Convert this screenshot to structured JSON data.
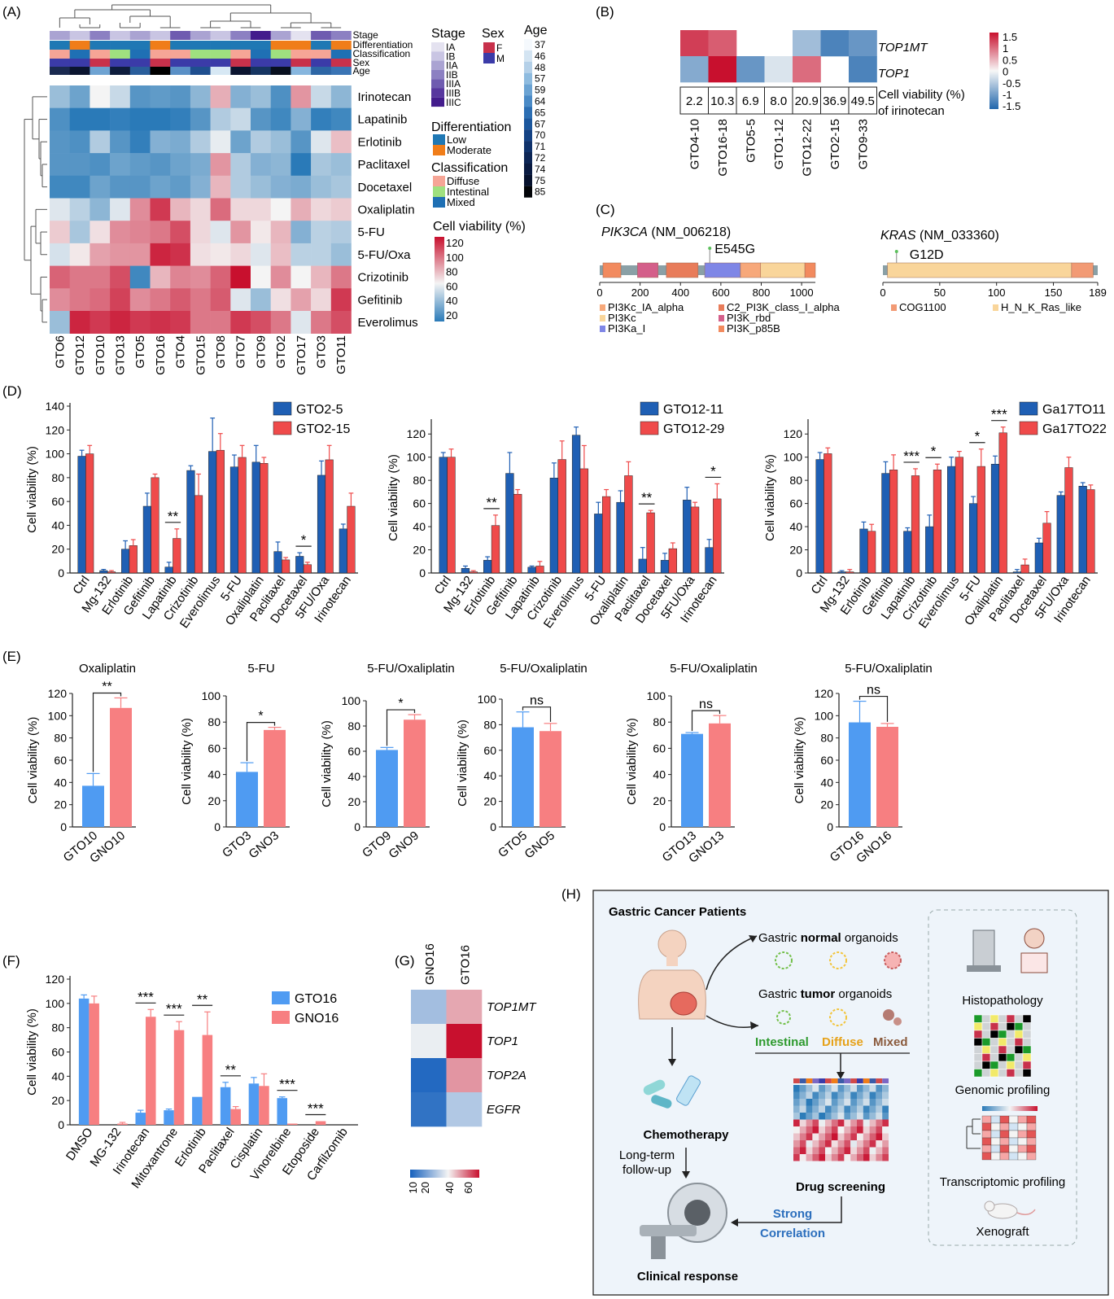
{
  "panels": {
    "A": "(A)",
    "B": "(B)",
    "C": "(C)",
    "D": "(D)",
    "E": "(E)",
    "F": "(F)",
    "G": "(G)",
    "H": "(H)"
  },
  "colors": {
    "blue": "#1f5fb4",
    "red": "#ef4a4a",
    "lightblue": "#4f9bf2",
    "lightred": "#f77f81"
  },
  "chart_data": [
    {
      "id": "A",
      "type": "heatmap",
      "columns": [
        "GTO6",
        "GTO12",
        "GTO10",
        "GTO13",
        "GTO5",
        "GTO16",
        "GTO4",
        "GTO15",
        "GTO8",
        "GTO7",
        "GTO9",
        "GTO2",
        "GTO17",
        "GTO3",
        "GTO11"
      ],
      "rows": [
        "Irinotecan",
        "Lapatinib",
        "Erlotinib",
        "Paclitaxel",
        "Docetaxel",
        "Oxaliplatin",
        "5-FU",
        "5-FU/Oxa",
        "Crizotinib",
        "Gefitinib",
        "Everolimus"
      ],
      "values": [
        [
          45,
          35,
          65,
          55,
          30,
          32,
          30,
          42,
          82,
          40,
          45,
          28,
          88,
          55,
          42
        ],
        [
          28,
          20,
          15,
          22,
          20,
          18,
          22,
          30,
          50,
          55,
          30,
          25,
          40,
          22,
          25
        ],
        [
          30,
          28,
          50,
          30,
          22,
          40,
          38,
          50,
          62,
          35,
          50,
          45,
          30,
          60,
          78
        ],
        [
          30,
          30,
          28,
          35,
          32,
          30,
          35,
          38,
          88,
          50,
          40,
          42,
          20,
          48,
          45
        ],
        [
          25,
          25,
          35,
          30,
          30,
          35,
          32,
          40,
          80,
          50,
          45,
          40,
          38,
          45,
          48
        ],
        [
          60,
          52,
          42,
          60,
          90,
          110,
          80,
          72,
          98,
          72,
          72,
          65,
          82,
          72,
          75
        ],
        [
          75,
          48,
          70,
          90,
          92,
          95,
          105,
          72,
          60,
          88,
          68,
          80,
          40,
          52,
          50
        ],
        [
          58,
          68,
          85,
          88,
          88,
          115,
          112,
          70,
          68,
          72,
          60,
          78,
          52,
          52,
          45
        ],
        [
          100,
          95,
          95,
          105,
          25,
          80,
          92,
          90,
          100,
          120,
          65,
          90,
          65,
          80,
          95
        ],
        [
          90,
          95,
          98,
          108,
          90,
          95,
          102,
          95,
          102,
          60,
          45,
          70,
          85,
          72,
          110
        ],
        [
          45,
          115,
          110,
          115,
          110,
          112,
          110,
          95,
          95,
          110,
          105,
          95,
          60,
          95,
          105
        ]
      ],
      "annotation_labels": [
        "Stage",
        "Differentiation",
        "Classification",
        "Sex",
        "Age"
      ],
      "legend": {
        "stage_title": "Stage",
        "stage": [
          {
            "label": "IA",
            "color": "#e4e2f0"
          },
          {
            "label": "IB",
            "color": "#c9c5e3"
          },
          {
            "label": "IIA",
            "color": "#aaa3d2"
          },
          {
            "label": "IIB",
            "color": "#8c80c2"
          },
          {
            "label": "IIIA",
            "color": "#6f5cb0"
          },
          {
            "label": "IIIB",
            "color": "#57379e"
          },
          {
            "label": "IIIC",
            "color": "#431c8c"
          }
        ],
        "sex_title": "Sex",
        "sex": [
          {
            "label": "F",
            "color": "#c8314b"
          },
          {
            "label": "M",
            "color": "#3b3ba8"
          }
        ],
        "differentiation_title": "Differentiation",
        "differentiation": [
          {
            "label": "Low",
            "color": "#1f78b4"
          },
          {
            "label": "Moderate",
            "color": "#f07d19"
          }
        ],
        "classification_title": "Classification",
        "classification": [
          {
            "label": "Diffuse",
            "color": "#f6a596"
          },
          {
            "label": "Intestinal",
            "color": "#9fe07f"
          },
          {
            "label": "Mixed",
            "color": "#1f70b4"
          }
        ],
        "viability_title": "Cell viability (%)",
        "viability_ticks": [
          "120",
          "100",
          "80",
          "60",
          "40",
          "20"
        ],
        "age_title": "Age",
        "age_ticks": [
          "37",
          "46",
          "48",
          "57",
          "59",
          "64",
          "65",
          "67",
          "70",
          "71",
          "72",
          "74",
          "75",
          "85"
        ]
      }
    },
    {
      "id": "B",
      "type": "heatmap",
      "columns": [
        "GTO4-10",
        "GTO16-18",
        "GTO5-5",
        "GTO1-12",
        "GTO12-22",
        "GTO2-15",
        "GTO9-33"
      ],
      "rows": [
        "TOP1MT",
        "TOP1"
      ],
      "values": [
        [
          1.2,
          1.0,
          null,
          null,
          -0.6,
          -1.2,
          -1.0
        ],
        [
          -0.8,
          1.6,
          -1.0,
          -0.2,
          0.9,
          null,
          -1.2
        ]
      ],
      "viability_values": [
        "2.2",
        "10.3",
        "6.9",
        "8.0",
        "20.9",
        "36.9",
        "49.5"
      ],
      "viability_label_1": "Cell viability (%)",
      "viability_label_2": "of irinotecan",
      "legend_ticks": [
        "1.5",
        "1",
        "0.5",
        "0",
        "-0.5",
        "-1",
        "-1.5"
      ]
    },
    {
      "id": "C",
      "type": "diagram",
      "pik3ca_gene": "PIK3CA",
      "pik3ca_acc": " (NM_006218)",
      "pik3ca_mut": "E545G",
      "pik3ca_ticks": [
        "0",
        "200",
        "400",
        "600",
        "800",
        "1000"
      ],
      "pik3ca_legend": [
        {
          "label": "PI3Kc_IA_alpha",
          "color": "#f7a87a"
        },
        {
          "label": "C2_PI3K_class_I_alpha",
          "color": "#e87c5a"
        },
        {
          "label": "PI3Kc",
          "color": "#f9d59a"
        },
        {
          "label": "PI3K_rbd",
          "color": "#d45f8a"
        },
        {
          "label": "PI3Ka_I",
          "color": "#7f86e6"
        },
        {
          "label": "PI3K_p85B",
          "color": "#f28a5e"
        }
      ],
      "kras_gene": "KRAS",
      "kras_acc": " (NM_033360)",
      "kras_mut": "G12D",
      "kras_ticks": [
        "0",
        "50",
        "100",
        "150",
        "189"
      ],
      "kras_legend": [
        {
          "label": "COG1100",
          "color": "#f29a74"
        },
        {
          "label": "H_N_K_Ras_like",
          "color": "#f9d59a"
        }
      ]
    },
    {
      "id": "D1",
      "type": "bar",
      "ylabel": "Cell viability (%)",
      "ylim": [
        0,
        140
      ],
      "yticks": [
        "0",
        "20",
        "40",
        "60",
        "80",
        "100",
        "120",
        "140"
      ],
      "categories": [
        "Ctrl",
        "Mg-132",
        "Erlotinib",
        "Gefitinib",
        "Lapatinib",
        "Crizotinib",
        "Everolimus",
        "5-FU",
        "Oxaliplatin",
        "Paclitaxel",
        "Docetaxel",
        "5FU/Oxa",
        "Irinotecan"
      ],
      "series": [
        {
          "name": "GTO2-5",
          "values": [
            98,
            2,
            20,
            56,
            5,
            86,
            102,
            89,
            93,
            18,
            14,
            82,
            37
          ],
          "errors": [
            5,
            1,
            7,
            11,
            4,
            4,
            28,
            10,
            14,
            8,
            3,
            12,
            4
          ]
        },
        {
          "name": "GTO2-15",
          "values": [
            100,
            1,
            23,
            80,
            29,
            65,
            103,
            97,
            92,
            11,
            7,
            95,
            56
          ],
          "errors": [
            7,
            1,
            5,
            3,
            8,
            18,
            14,
            10,
            5,
            2,
            2,
            12,
            11
          ]
        }
      ],
      "significance": [
        {
          "category": "Lapatinib",
          "label": "**"
        },
        {
          "category": "Docetaxel",
          "label": "*"
        }
      ]
    },
    {
      "id": "D2",
      "type": "bar",
      "ylabel": "Cell viability (%)",
      "ylim": [
        0,
        130
      ],
      "yticks": [
        "0",
        "20",
        "40",
        "60",
        "80",
        "100",
        "120"
      ],
      "categories": [
        "Ctrl",
        "Mg-132",
        "Erlotinib",
        "Gefitinib",
        "Lapatinib",
        "Crizotinib",
        "Everolimus",
        "5-FU",
        "Oxaliplatin",
        "Paclitaxel",
        "Docetaxel",
        "5FU/Oxa",
        "Irinotecan"
      ],
      "series": [
        {
          "name": "GTO12-11",
          "values": [
            100,
            4,
            11,
            86,
            5,
            82,
            119,
            51,
            61,
            12,
            11,
            63,
            22
          ],
          "errors": [
            4,
            2,
            3,
            18,
            1,
            13,
            7,
            10,
            10,
            10,
            6,
            11,
            7
          ]
        },
        {
          "name": "GTO12-29",
          "values": [
            100,
            1,
            41,
            68,
            6,
            98,
            90,
            66,
            84,
            52,
            21,
            57,
            64
          ],
          "errors": [
            7,
            1,
            9,
            4,
            4,
            16,
            20,
            6,
            12,
            2,
            5,
            4,
            13
          ]
        }
      ],
      "significance": [
        {
          "category": "Erlotinib",
          "label": "**"
        },
        {
          "category": "Paclitaxel",
          "label": "**"
        },
        {
          "category": "Irinotecan",
          "label": "*"
        }
      ]
    },
    {
      "id": "D3",
      "type": "bar",
      "ylabel": "Cell viability (%)",
      "ylim": [
        0,
        130
      ],
      "yticks": [
        "0",
        "20",
        "40",
        "60",
        "80",
        "100",
        "120"
      ],
      "categories": [
        "Ctrl",
        "Mg-132",
        "Erlotinib",
        "Gefitinib",
        "Lapatinib",
        "Crizotinib",
        "Everolimus",
        "5-FU",
        "Oxaliplatin",
        "Paclitaxel",
        "Docetaxel",
        "5FU/Oxa",
        "Irinotecan"
      ],
      "series": [
        {
          "name": "Ga17TO11",
          "values": [
            98,
            1,
            38,
            86,
            36,
            40,
            92,
            60,
            94,
            1,
            26,
            67,
            75
          ],
          "errors": [
            6,
            1,
            6,
            10,
            3,
            10,
            8,
            6,
            7,
            2,
            4,
            3,
            3
          ]
        },
        {
          "name": "Ga17TO22",
          "values": [
            103,
            1,
            36,
            89,
            84,
            89,
            100,
            92,
            121,
            7,
            43,
            91,
            72
          ],
          "errors": [
            5,
            2,
            6,
            13,
            6,
            5,
            5,
            15,
            5,
            5,
            10,
            9,
            4
          ]
        }
      ],
      "significance": [
        {
          "category": "Lapatinib",
          "label": "***"
        },
        {
          "category": "Crizotinib",
          "label": "*"
        },
        {
          "category": "5-FU",
          "label": "*"
        },
        {
          "category": "Oxaliplatin",
          "label": "***"
        }
      ]
    },
    {
      "id": "E1",
      "type": "bar",
      "title": "Oxaliplatin",
      "ylabel": "Cell viability (%)",
      "ylim": [
        0,
        120
      ],
      "yticks": [
        "0",
        "20",
        "40",
        "60",
        "80",
        "100",
        "120"
      ],
      "categories": [
        "GTO10",
        "GNO10"
      ],
      "values": [
        37,
        107
      ],
      "errors": [
        11,
        9
      ],
      "sig": "**"
    },
    {
      "id": "E2",
      "type": "bar",
      "title": "5-FU",
      "ylabel": "Cell viability (%)",
      "ylim": [
        0,
        100
      ],
      "yticks": [
        "0",
        "20",
        "40",
        "60",
        "80",
        "100"
      ],
      "categories": [
        "GTO3",
        "GNO3"
      ],
      "values": [
        42,
        74
      ],
      "errors": [
        7,
        2
      ],
      "sig": "*"
    },
    {
      "id": "E3",
      "type": "bar",
      "title": "5-FU/Oxaliplatin",
      "ylabel": "Cell viability (%)",
      "ylim": [
        0,
        100
      ],
      "yticks": [
        "0",
        "20",
        "40",
        "60",
        "80",
        "100"
      ],
      "categories": [
        "GTO9",
        "GNO9"
      ],
      "values": [
        61,
        85
      ],
      "errors": [
        2,
        4
      ],
      "sig": "*"
    },
    {
      "id": "E4",
      "type": "bar",
      "title": "5-FU/Oxaliplatin",
      "ylabel": "Cell viability (%)",
      "ylim": [
        0,
        100
      ],
      "yticks": [
        "0",
        "20",
        "40",
        "60",
        "80",
        "100"
      ],
      "categories": [
        "GTO5",
        "GNO5"
      ],
      "values": [
        78,
        75
      ],
      "errors": [
        12,
        6
      ],
      "sig": "ns"
    },
    {
      "id": "E5",
      "type": "bar",
      "title": "5-FU/Oxaliplatin",
      "ylabel": "Cell viability (%)",
      "ylim": [
        0,
        100
      ],
      "yticks": [
        "0",
        "20",
        "40",
        "60",
        "80",
        "100"
      ],
      "categories": [
        "GTO13",
        "GNO13"
      ],
      "values": [
        71,
        79
      ],
      "errors": [
        1,
        6
      ],
      "sig": "ns"
    },
    {
      "id": "E6",
      "type": "bar",
      "title": "5-FU/Oxaliplatin",
      "ylabel": "Cell viability (%)",
      "ylim": [
        0,
        120
      ],
      "yticks": [
        "0",
        "20",
        "40",
        "60",
        "80",
        "100",
        "120"
      ],
      "categories": [
        "GTO16",
        "GNO16"
      ],
      "values": [
        94,
        90
      ],
      "errors": [
        19,
        3
      ],
      "sig": "ns"
    },
    {
      "id": "F",
      "type": "bar",
      "ylabel": "Cell viability (%)",
      "ylim": [
        0,
        120
      ],
      "yticks": [
        "0",
        "20",
        "40",
        "60",
        "80",
        "100",
        "120"
      ],
      "categories": [
        "DMSO",
        "MG-132",
        "Irinotecan",
        "Mitoxantrone",
        "Erlotinib",
        "Paclitaxel",
        "Cisplatin",
        "Vinorelbine",
        "Etoposide",
        "Carfilzomib"
      ],
      "series": [
        {
          "name": "GTO16",
          "values": [
            104,
            0,
            10,
            12,
            23,
            31,
            34,
            22,
            0,
            0
          ],
          "errors": [
            3,
            0,
            2,
            1,
            0,
            4,
            5,
            1,
            0,
            0
          ]
        },
        {
          "name": "GNO16",
          "values": [
            100,
            1,
            89,
            78,
            74,
            13,
            32,
            1,
            3,
            0
          ],
          "errors": [
            6,
            1,
            6,
            7,
            19,
            2,
            10,
            0,
            0,
            0
          ]
        }
      ],
      "significance": [
        {
          "category": "Irinotecan",
          "label": "***"
        },
        {
          "category": "Mitoxantrone",
          "label": "***"
        },
        {
          "category": "Erlotinib",
          "label": "**"
        },
        {
          "category": "Paclitaxel",
          "label": "**"
        },
        {
          "category": "Vinorelbine",
          "label": "***"
        },
        {
          "category": "Etoposide",
          "label": "***"
        }
      ]
    },
    {
      "id": "G",
      "type": "heatmap",
      "columns": [
        "GNO16",
        "GTO16"
      ],
      "rows": [
        "TOP1MT",
        "TOP1",
        "TOP2A",
        "EGFR"
      ],
      "values": [
        [
          28,
          48
        ],
        [
          38,
          65
        ],
        [
          10,
          50
        ],
        [
          12,
          30
        ]
      ],
      "legend_ticks": [
        "10",
        "20",
        "40",
        "60"
      ]
    }
  ],
  "H": {
    "patients": "Gastric Cancer Patients",
    "normal_pre": "Gastric ",
    "normal_bold": "normal",
    "normal_post": " organoids",
    "tumor_pre": "Gastric ",
    "tumor_bold": "tumor",
    "tumor_post": " organoids",
    "intestinal": "Intestinal",
    "diffuse": "Diffuse",
    "mixed": "Mixed",
    "chemo": "Chemotherapy",
    "follow1": "Long-term",
    "follow2": "follow-up",
    "clinical": "Clinical response",
    "screening": "Drug screening",
    "strong": "Strong",
    "correlation": "Correlation",
    "histo": "Histopathology",
    "genomic": "Genomic profiling",
    "transcriptomic": "Transcriptomic profiling",
    "xenograft": "Xenograft"
  }
}
